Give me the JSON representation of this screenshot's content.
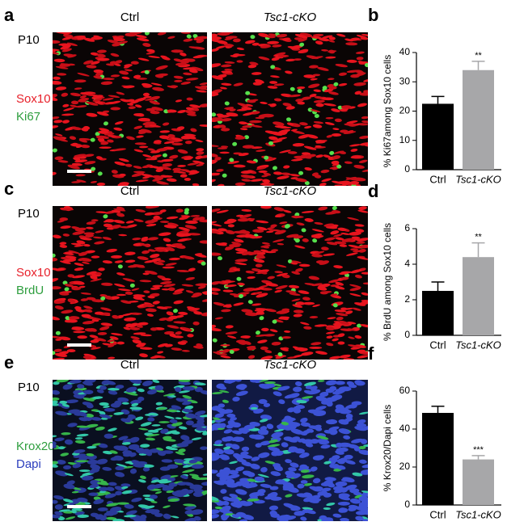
{
  "figure_panels": [
    {
      "letter": "a",
      "stage": "P10",
      "columns": [
        "Ctrl",
        "Tsc1-cKO"
      ],
      "stains": [
        {
          "name": "Sox10",
          "color": "#e8212b"
        },
        {
          "name": "Ki67",
          "color": "#2e9e3e"
        }
      ]
    },
    {
      "letter": "c",
      "stage": "P10",
      "columns": [
        "Ctrl",
        "Tsc1-cKO"
      ],
      "stains": [
        {
          "name": "Sox10",
          "color": "#e8212b"
        },
        {
          "name": "BrdU",
          "color": "#2e9e3e"
        }
      ]
    },
    {
      "letter": "e",
      "stage": "P10",
      "columns": [
        "Ctrl",
        "Tsc1-cKO"
      ],
      "stains": [
        {
          "name": "Krox20",
          "color": "#2e9e3e"
        },
        {
          "name": "Dapi",
          "color": "#2b3dbd"
        }
      ]
    }
  ],
  "chart_data": [
    {
      "type": "bar",
      "panel_label": "b",
      "y_label": "% Ki67among Sox10 cells",
      "categories": [
        "Ctrl",
        "Tsc1-cKO"
      ],
      "values": [
        22.5,
        34
      ],
      "errors": [
        2.5,
        3
      ],
      "colors": [
        "#000000",
        "#a7a7a9"
      ],
      "annotation": "**",
      "ylim": [
        0,
        40
      ],
      "yticks": [
        0,
        10,
        20,
        30,
        40
      ]
    },
    {
      "type": "bar",
      "panel_label": "d",
      "y_label": "% BrdU among Sox10 cells",
      "categories": [
        "Ctrl",
        "Tsc1-cKO"
      ],
      "values": [
        2.5,
        4.4
      ],
      "errors": [
        0.5,
        0.8
      ],
      "colors": [
        "#000000",
        "#a7a7a9"
      ],
      "annotation": "**",
      "ylim": [
        0,
        6
      ],
      "yticks": [
        0,
        2,
        4,
        6
      ]
    },
    {
      "type": "bar",
      "panel_label": "f",
      "y_label": "% Krox20/Dapi cells",
      "categories": [
        "Ctrl",
        "Tsc1-cKO"
      ],
      "values": [
        48.5,
        24
      ],
      "errors": [
        3.5,
        2
      ],
      "colors": [
        "#000000",
        "#a7a7a9"
      ],
      "annotation": "***",
      "ylim": [
        0,
        60
      ],
      "yticks": [
        0,
        20,
        40,
        60
      ]
    }
  ]
}
